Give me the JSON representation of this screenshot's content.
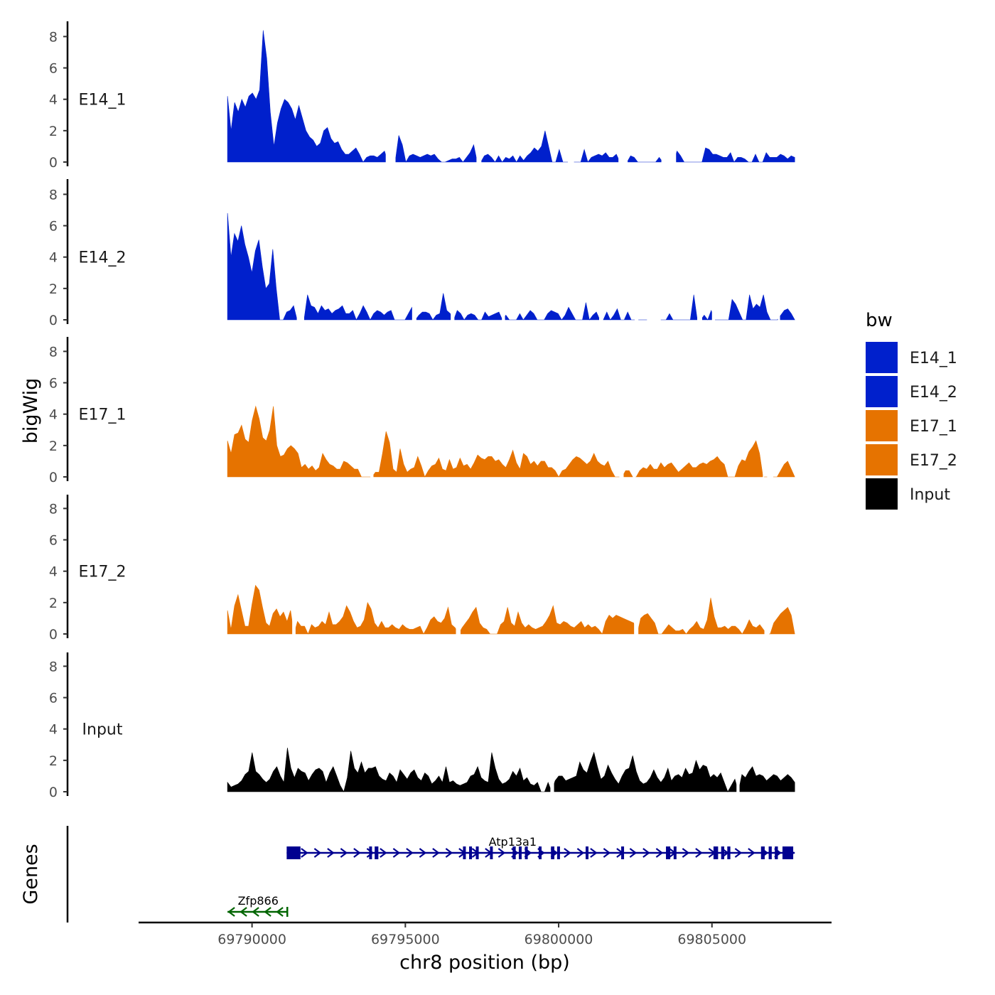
{
  "chart_data": {
    "type": "area",
    "y_axis_title": "bigWig",
    "x_axis_title": "chr8 position (bp)",
    "legend_title": "bw",
    "x_range": [
      69789200,
      69807700
    ],
    "xlim": [
      69786300,
      69808900
    ],
    "ylim": [
      0,
      9
    ],
    "y_ticks": [
      "0",
      "2",
      "4",
      "6",
      "8"
    ],
    "x_ticks": [
      {
        "value": 69790000,
        "label": "69790000"
      },
      {
        "value": 69795000,
        "label": "69795000"
      },
      {
        "value": 69800000,
        "label": "69800000"
      },
      {
        "value": 69805000,
        "label": "69805000"
      }
    ],
    "tracks": [
      {
        "name": "E14_1",
        "label": "E14_1",
        "color": "#0020CC",
        "values": [
          4.2,
          2.0,
          3.8,
          3.2,
          4.0,
          3.5,
          4.2,
          4.4,
          4.0,
          4.6,
          8.4,
          6.6,
          3.2,
          1.0,
          2.5,
          3.4,
          4.0,
          3.8,
          3.4,
          2.7,
          3.6,
          2.8,
          2.0,
          1.6,
          1.4,
          1.0,
          1.2,
          2.0,
          2.2,
          1.5,
          1.2,
          1.3,
          0.8,
          0.5,
          0.5,
          0.7,
          0.9,
          0.5,
          0.0,
          0.3,
          0.4,
          0.4,
          0.3,
          0.5,
          0.7,
          1.0,
          0.5,
          0.0,
          1.7,
          1.1,
          0.0,
          0.4,
          0.5,
          0.4,
          0.3,
          0.4,
          0.5,
          0.4,
          0.5,
          0.2,
          0.0,
          0.0,
          0.1,
          0.2,
          0.2,
          0.3,
          0.0,
          0.3,
          0.6,
          1.1,
          1.0,
          0.8,
          0.4,
          0.5,
          0.3,
          0.0,
          0.4,
          0.0,
          0.3,
          0.2,
          0.4,
          0.0,
          0.4,
          0.1,
          0.4,
          0.6,
          0.9,
          0.7,
          1.0,
          2.0,
          1.0,
          0.0,
          0.0,
          0.8,
          0.0,
          0.0,
          0.0,
          0.0,
          0.0,
          0.0,
          0.8,
          0.0,
          0.3,
          0.4,
          0.5,
          0.4,
          0.6,
          0.3,
          0.3,
          0.5,
          0.4,
          0.3,
          0.2,
          0.4,
          0.3,
          0.0,
          0.0,
          0.0,
          0.0,
          0.0,
          0.0,
          0.3,
          0.0,
          0.4,
          0.6,
          0.5,
          0.7,
          0.4,
          0.0,
          0.0,
          0.0,
          0.0,
          0.0,
          0.0,
          0.9,
          0.8,
          0.5,
          0.5,
          0.4,
          0.3,
          0.3,
          0.6,
          0.0,
          0.3,
          0.3,
          0.2,
          0.0,
          0.0,
          0.5,
          0.0,
          0.0,
          0.6,
          0.3,
          0.3,
          0.3,
          0.5,
          0.4,
          0.2,
          0.4,
          0.3
        ],
        "breaks": [
          [
            69794360,
            69794680
          ],
          [
            69797320,
            69797480
          ],
          [
            69800300,
            69800500
          ],
          [
            69801950,
            69802250
          ],
          [
            69803350,
            69803830
          ]
        ]
      },
      {
        "name": "E14_2",
        "label": "E14_2",
        "color": "#0020CC",
        "values": [
          6.8,
          4.0,
          5.5,
          5.0,
          6.0,
          4.8,
          4.0,
          3.0,
          4.4,
          5.1,
          3.4,
          2.0,
          2.3,
          4.5,
          2.0,
          0.0,
          0.0,
          0.5,
          0.6,
          0.9,
          1.5,
          0.4,
          0.6,
          1.6,
          0.9,
          0.8,
          0.4,
          0.9,
          0.6,
          0.7,
          0.4,
          0.6,
          0.7,
          0.9,
          0.4,
          0.4,
          0.6,
          0.0,
          0.4,
          0.9,
          0.5,
          0.0,
          0.4,
          0.6,
          0.5,
          0.3,
          0.5,
          0.6,
          0.0,
          0.0,
          0.0,
          0.0,
          0.4,
          0.8,
          0.0,
          0.3,
          0.5,
          0.5,
          0.4,
          0.0,
          0.3,
          0.4,
          1.7,
          0.6,
          0.4,
          0.3,
          0.6,
          0.4,
          0.0,
          0.3,
          0.4,
          0.3,
          0.0,
          0.0,
          0.5,
          0.2,
          0.3,
          0.4,
          0.5,
          0.5,
          0.3,
          0.0,
          0.0,
          0.0,
          0.4,
          0.0,
          0.3,
          0.6,
          0.4,
          0.0,
          0.0,
          0.0,
          0.4,
          0.6,
          0.5,
          0.4,
          0.0,
          0.3,
          0.8,
          0.4,
          0.0,
          0.0,
          0.0,
          1.1,
          0.0,
          0.3,
          0.5,
          0.3,
          0.0,
          0.5,
          0.0,
          0.3,
          0.7,
          0.0,
          0.0,
          0.5,
          0.0,
          0.0,
          0.0,
          0.0,
          0.0,
          0.0,
          0.7,
          0.0,
          0.0,
          0.0,
          0.0,
          0.4,
          0.0,
          0.0,
          0.0,
          0.0,
          0.0,
          0.0,
          1.6,
          0.8,
          0.5,
          0.3,
          0.0,
          0.6,
          0.4,
          0.0,
          0.0,
          0.0,
          0.0,
          1.3,
          1.0,
          0.5,
          0.0,
          0.0,
          1.6,
          0.7,
          1.0,
          0.8,
          1.6,
          0.5,
          0.0,
          0.0,
          0.0,
          0.3,
          0.6,
          0.7,
          0.4,
          0.0
        ],
        "breaks": [
          [
            69791460,
            69791700
          ],
          [
            69795220,
            69795360
          ],
          [
            69796480,
            69796600
          ],
          [
            69798150,
            69798250
          ],
          [
            69801320,
            69801450
          ],
          [
            69802480,
            69802600
          ],
          [
            69802880,
            69803330
          ],
          [
            69804520,
            69804680
          ],
          [
            69805000,
            69805100
          ],
          [
            69807150,
            69807220
          ]
        ]
      },
      {
        "name": "E17_1",
        "label": "E17_1",
        "color": "#E67300",
        "values": [
          2.3,
          1.5,
          2.7,
          2.8,
          3.3,
          2.4,
          2.2,
          3.6,
          4.5,
          3.7,
          2.5,
          2.3,
          3.0,
          4.5,
          2.0,
          1.3,
          1.4,
          1.8,
          2.0,
          1.8,
          1.5,
          0.6,
          0.8,
          0.5,
          0.7,
          0.4,
          0.6,
          1.5,
          1.1,
          0.8,
          0.7,
          0.5,
          0.5,
          1.0,
          0.9,
          0.7,
          0.5,
          0.5,
          0.0,
          0.0,
          0.0,
          0.4,
          0.3,
          0.3,
          1.5,
          2.9,
          2.2,
          0.5,
          0.3,
          1.8,
          0.8,
          0.3,
          0.5,
          0.6,
          1.3,
          0.7,
          0.0,
          0.4,
          0.7,
          0.8,
          1.2,
          0.5,
          0.4,
          1.1,
          0.5,
          0.6,
          1.2,
          0.7,
          0.8,
          0.5,
          0.9,
          1.4,
          1.2,
          1.1,
          1.3,
          1.3,
          1.0,
          1.1,
          0.8,
          0.6,
          1.1,
          1.7,
          0.9,
          0.5,
          1.5,
          1.3,
          0.8,
          1.0,
          0.7,
          1.0,
          1.0,
          0.6,
          0.6,
          0.4,
          0.0,
          0.4,
          0.5,
          0.8,
          1.1,
          1.3,
          1.2,
          1.0,
          0.8,
          1.0,
          1.5,
          1.0,
          0.8,
          0.7,
          1.0,
          0.4,
          0.0,
          0.0,
          0.8,
          0.4,
          0.4,
          0.0,
          0.0,
          0.4,
          0.6,
          0.5,
          0.8,
          0.5,
          0.5,
          0.9,
          0.6,
          0.8,
          0.9,
          0.6,
          0.3,
          0.5,
          0.7,
          0.9,
          0.6,
          0.6,
          0.8,
          0.9,
          0.8,
          1.0,
          1.1,
          1.3,
          1.0,
          0.8,
          0.0,
          0.0,
          0.0,
          0.7,
          1.1,
          1.0,
          1.6,
          1.9,
          2.3,
          1.5,
          0.4,
          0.0,
          0.4,
          0.0,
          0.0,
          0.4,
          0.8,
          1.0,
          0.5,
          0.0
        ],
        "breaks": [
          [
            69793860,
            69793960
          ],
          [
            69801980,
            69802120
          ],
          [
            69802420,
            69802510
          ],
          [
            69806660,
            69806700
          ],
          [
            69806800,
            69807000
          ]
        ]
      },
      {
        "name": "E17_2",
        "label": "E17_2",
        "color": "#E67300",
        "values": [
          1.5,
          0.3,
          1.8,
          2.5,
          1.5,
          0.5,
          0.5,
          1.9,
          3.1,
          2.8,
          1.7,
          0.7,
          0.5,
          1.3,
          1.6,
          1.1,
          1.4,
          0.8,
          1.5,
          1.2,
          0.8,
          0.5,
          0.5,
          0.0,
          0.6,
          0.4,
          0.5,
          0.8,
          0.6,
          1.4,
          0.6,
          0.6,
          0.8,
          1.1,
          1.8,
          1.4,
          0.8,
          0.4,
          0.5,
          0.9,
          2.0,
          1.6,
          0.7,
          0.4,
          0.8,
          0.4,
          0.4,
          0.6,
          0.4,
          0.3,
          0.6,
          0.4,
          0.3,
          0.3,
          0.4,
          0.5,
          0.0,
          0.4,
          0.9,
          1.1,
          0.8,
          0.7,
          1.0,
          1.7,
          0.6,
          0.4,
          0.3,
          0.4,
          0.7,
          1.0,
          1.4,
          1.7,
          0.7,
          0.4,
          0.3,
          0.0,
          0.0,
          0.0,
          0.6,
          0.8,
          1.7,
          0.7,
          0.5,
          1.4,
          0.7,
          0.4,
          0.6,
          0.4,
          0.3,
          0.4,
          0.5,
          0.8,
          1.2,
          1.8,
          0.7,
          0.6,
          0.8,
          0.7,
          0.5,
          0.4,
          0.6,
          0.8,
          0.4,
          0.6,
          0.4,
          0.5,
          0.3,
          0.0,
          0.8,
          1.2,
          1.0,
          1.2,
          1.1,
          1.0,
          0.9,
          0.8,
          0.7,
          0.8,
          1.0,
          1.2,
          1.3,
          1.0,
          0.7,
          0.0,
          0.0,
          0.3,
          0.6,
          0.4,
          0.2,
          0.2,
          0.3,
          0.0,
          0.3,
          0.5,
          0.8,
          0.4,
          0.3,
          0.9,
          2.3,
          1.1,
          0.4,
          0.4,
          0.5,
          0.3,
          0.5,
          0.5,
          0.3,
          0.0,
          0.4,
          0.9,
          0.5,
          0.4,
          0.6,
          0.3,
          0.0,
          0.0,
          0.7,
          1.0,
          1.3,
          1.5,
          1.7,
          1.2,
          0.0
        ],
        "breaks": [
          [
            69791310,
            69791420
          ],
          [
            69796650,
            69796800
          ],
          [
            69802460,
            69802600
          ],
          [
            69806710,
            69806860
          ]
        ]
      },
      {
        "name": "Input",
        "label": "Input",
        "color": "#000000",
        "values": [
          0.6,
          0.3,
          0.4,
          0.5,
          0.7,
          1.1,
          1.3,
          2.5,
          1.3,
          1.1,
          0.8,
          0.6,
          0.8,
          1.3,
          1.6,
          1.0,
          0.6,
          2.8,
          1.5,
          0.9,
          1.5,
          1.3,
          1.2,
          0.7,
          1.1,
          1.4,
          1.5,
          1.3,
          0.6,
          1.2,
          1.6,
          1.0,
          0.4,
          0.0,
          0.9,
          2.6,
          1.5,
          1.2,
          1.9,
          1.2,
          1.5,
          1.5,
          1.6,
          1.0,
          0.8,
          0.7,
          1.2,
          1.0,
          0.6,
          1.4,
          1.1,
          0.8,
          1.2,
          1.4,
          0.9,
          0.7,
          1.2,
          1.0,
          0.5,
          0.7,
          1.0,
          0.6,
          1.6,
          0.6,
          0.7,
          0.5,
          0.4,
          0.5,
          0.6,
          1.0,
          1.1,
          1.6,
          0.9,
          0.7,
          0.6,
          2.5,
          1.5,
          0.8,
          0.5,
          0.6,
          0.8,
          1.3,
          1.0,
          1.5,
          0.7,
          0.9,
          0.5,
          0.4,
          0.6,
          0.0,
          0.0,
          0.6,
          0.3,
          0.7,
          1.0,
          1.0,
          0.7,
          0.8,
          0.9,
          1.0,
          1.9,
          1.4,
          1.2,
          1.9,
          2.5,
          1.6,
          0.8,
          1.0,
          1.7,
          1.2,
          0.8,
          0.5,
          1.0,
          1.4,
          1.5,
          2.3,
          1.3,
          0.7,
          0.5,
          0.6,
          0.9,
          1.4,
          0.9,
          0.6,
          0.9,
          1.5,
          0.7,
          1.0,
          1.1,
          0.9,
          1.5,
          1.1,
          1.2,
          2.0,
          1.4,
          1.7,
          1.6,
          0.9,
          1.1,
          0.9,
          1.2,
          0.6,
          0.0,
          0.4,
          0.8,
          1.5,
          1.1,
          0.9,
          1.3,
          1.6,
          1.0,
          1.1,
          1.0,
          0.7,
          0.9,
          1.1,
          1.0,
          0.7,
          0.9,
          1.1,
          0.9,
          0.6
        ],
        "breaks": [
          [
            69799730,
            69799850
          ],
          [
            69805800,
            69805900
          ]
        ]
      }
    ],
    "genes": [
      {
        "name": "Atp13a1",
        "strand": "+",
        "color": "#000090",
        "row": 1,
        "label_x": 69798500,
        "start": 69791130,
        "end": 69807700,
        "exons": [
          [
            69791130,
            69791580
          ],
          [
            69793820,
            69793900
          ],
          [
            69794000,
            69794120
          ],
          [
            69796880,
            69796960
          ],
          [
            69797080,
            69797140
          ],
          [
            69797300,
            69797360
          ],
          [
            69797760,
            69797820
          ],
          [
            69798500,
            69798600
          ],
          [
            69798700,
            69798760
          ],
          [
            69798900,
            69798960
          ],
          [
            69799350,
            69799420
          ],
          [
            69799750,
            69799860
          ],
          [
            69799950,
            69800020
          ],
          [
            69800880,
            69800940
          ],
          [
            69802040,
            69802100
          ],
          [
            69803500,
            69803640
          ],
          [
            69803750,
            69803800
          ],
          [
            69805050,
            69805200
          ],
          [
            69805300,
            69805400
          ],
          [
            69805500,
            69805600
          ],
          [
            69806600,
            69806720
          ],
          [
            69806850,
            69806950
          ],
          [
            69807050,
            69807150
          ],
          [
            69807300,
            69807650
          ]
        ]
      },
      {
        "name": "Zfp866",
        "strand": "-",
        "color": "#006400",
        "row": 2,
        "label_x": 69790200,
        "start": 69789200,
        "end": 69791150,
        "exons": []
      }
    ],
    "gene_track_label": "Genes",
    "legend": [
      {
        "label": "E14_1",
        "color": "#0020CC"
      },
      {
        "label": "E14_2",
        "color": "#0020CC"
      },
      {
        "label": "E17_1",
        "color": "#E67300"
      },
      {
        "label": "E17_2",
        "color": "#E67300"
      },
      {
        "label": "Input",
        "color": "#000000"
      }
    ]
  }
}
